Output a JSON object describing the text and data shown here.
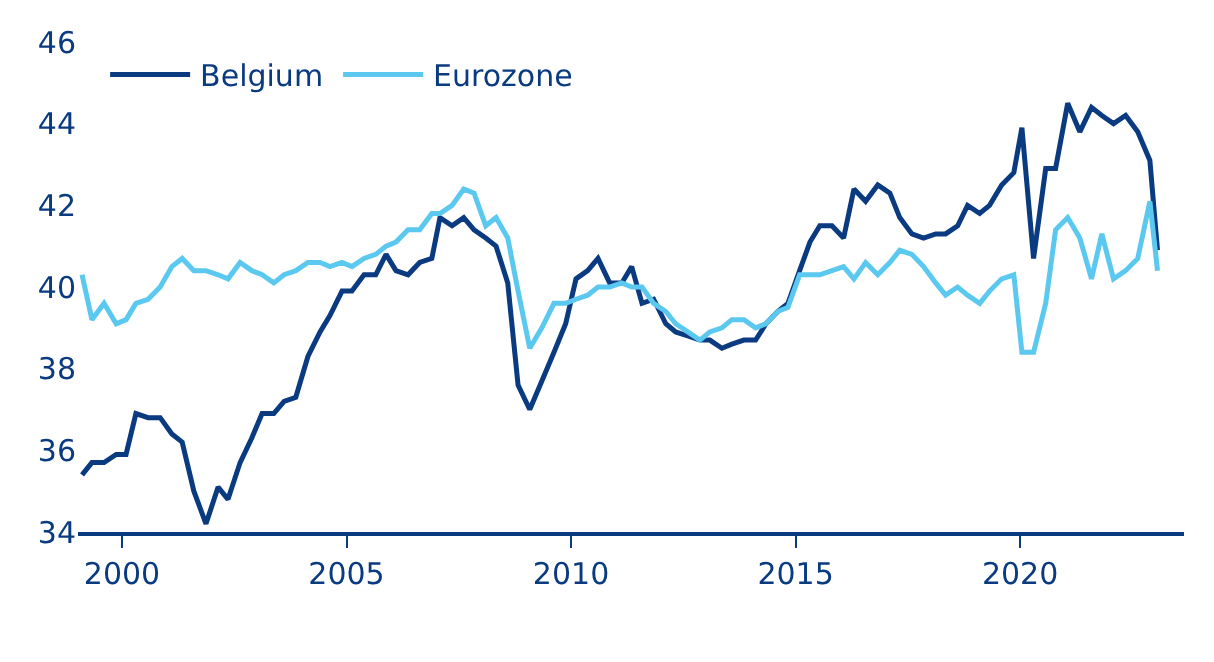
{
  "chart_data": {
    "type": "line",
    "xlim": [
      1999.02,
      2023.65
    ],
    "xticks": [
      2000,
      2005,
      2010,
      2015,
      2020
    ],
    "ylim": [
      34,
      46
    ],
    "yticks": [
      34,
      36,
      38,
      40,
      42,
      44,
      46
    ],
    "legend": "top left",
    "marker": "none",
    "line_style": "solid",
    "series": [
      {
        "name": "Belgium",
        "color": "#0a3a80",
        "x": [
          1999.11,
          1999.33,
          1999.6,
          1999.87,
          2000.09,
          2000.31,
          2000.58,
          2000.85,
          2001.11,
          2001.34,
          2001.6,
          2001.87,
          2002.14,
          2002.36,
          2002.63,
          2002.89,
          2003.12,
          2003.38,
          2003.61,
          2003.87,
          2004.14,
          2004.41,
          2004.63,
          2004.9,
          2005.12,
          2005.39,
          2005.65,
          2005.88,
          2006.1,
          2006.37,
          2006.63,
          2006.9,
          2007.08,
          2007.35,
          2007.61,
          2007.84,
          2008.1,
          2008.33,
          2008.59,
          2008.82,
          2009.08,
          2009.35,
          2009.62,
          2009.88,
          2010.11,
          2010.37,
          2010.6,
          2010.86,
          2011.13,
          2011.35,
          2011.58,
          2011.84,
          2012.11,
          2012.33,
          2012.6,
          2012.87,
          2013.09,
          2013.36,
          2013.58,
          2013.85,
          2014.11,
          2014.34,
          2014.6,
          2014.83,
          2015.09,
          2015.32,
          2015.54,
          2015.81,
          2016.07,
          2016.3,
          2016.56,
          2016.83,
          2017.1,
          2017.32,
          2017.59,
          2017.85,
          2018.12,
          2018.34,
          2018.61,
          2018.83,
          2019.1,
          2019.32,
          2019.59,
          2019.86,
          2020.04,
          2020.3,
          2020.57,
          2020.79,
          2021.06,
          2021.33,
          2021.59,
          2021.82,
          2022.08,
          2022.35,
          2022.62,
          2022.89,
          2023.06
        ],
        "values": [
          35.4,
          35.7,
          35.7,
          35.9,
          35.9,
          36.9,
          36.8,
          36.8,
          36.4,
          36.2,
          35.0,
          34.2,
          35.1,
          34.8,
          35.7,
          36.3,
          36.9,
          36.9,
          37.2,
          37.3,
          38.3,
          38.9,
          39.3,
          39.9,
          39.9,
          40.3,
          40.3,
          40.8,
          40.4,
          40.3,
          40.6,
          40.7,
          41.7,
          41.5,
          41.7,
          41.4,
          41.2,
          41.0,
          40.1,
          37.6,
          37.0,
          37.7,
          38.4,
          39.1,
          40.2,
          40.4,
          40.7,
          40.1,
          40.1,
          40.5,
          39.6,
          39.7,
          39.1,
          38.9,
          38.8,
          38.7,
          38.7,
          38.5,
          38.6,
          38.7,
          38.7,
          39.1,
          39.4,
          39.6,
          40.4,
          41.1,
          41.5,
          41.5,
          41.2,
          42.4,
          42.1,
          42.5,
          42.3,
          41.7,
          41.3,
          41.2,
          41.3,
          41.3,
          41.5,
          42.0,
          41.8,
          42.0,
          42.5,
          42.8,
          43.9,
          40.7,
          42.9,
          42.9,
          44.5,
          43.8,
          44.4,
          44.2,
          44.0,
          44.2,
          43.8,
          43.1,
          40.9
        ]
      },
      {
        "name": "Eurozone",
        "color": "#5bc8f0",
        "x": [
          1999.11,
          1999.33,
          1999.6,
          1999.87,
          2000.09,
          2000.31,
          2000.58,
          2000.85,
          2001.11,
          2001.34,
          2001.6,
          2001.87,
          2002.14,
          2002.36,
          2002.63,
          2002.89,
          2003.12,
          2003.38,
          2003.61,
          2003.87,
          2004.14,
          2004.41,
          2004.63,
          2004.9,
          2005.12,
          2005.39,
          2005.65,
          2005.88,
          2006.1,
          2006.37,
          2006.63,
          2006.9,
          2007.08,
          2007.35,
          2007.61,
          2007.84,
          2008.1,
          2008.33,
          2008.59,
          2008.82,
          2009.08,
          2009.35,
          2009.62,
          2009.88,
          2010.11,
          2010.37,
          2010.6,
          2010.86,
          2011.13,
          2011.35,
          2011.58,
          2011.84,
          2012.11,
          2012.33,
          2012.6,
          2012.87,
          2013.09,
          2013.36,
          2013.58,
          2013.85,
          2014.11,
          2014.34,
          2014.6,
          2014.83,
          2015.09,
          2015.32,
          2015.54,
          2015.81,
          2016.07,
          2016.3,
          2016.56,
          2016.83,
          2017.1,
          2017.32,
          2017.59,
          2017.85,
          2018.12,
          2018.34,
          2018.61,
          2018.83,
          2019.1,
          2019.32,
          2019.59,
          2019.86,
          2020.04,
          2020.3,
          2020.57,
          2020.79,
          2021.06,
          2021.33,
          2021.59,
          2021.82,
          2022.08,
          2022.35,
          2022.62,
          2022.89,
          2023.06
        ],
        "values": [
          40.3,
          39.2,
          39.6,
          39.1,
          39.2,
          39.6,
          39.7,
          40.0,
          40.5,
          40.7,
          40.4,
          40.4,
          40.3,
          40.2,
          40.6,
          40.4,
          40.3,
          40.1,
          40.3,
          40.4,
          40.6,
          40.6,
          40.5,
          40.6,
          40.5,
          40.7,
          40.8,
          41.0,
          41.1,
          41.4,
          41.4,
          41.8,
          41.8,
          42.0,
          42.4,
          42.3,
          41.5,
          41.7,
          41.2,
          39.9,
          38.5,
          39.0,
          39.6,
          39.6,
          39.7,
          39.8,
          40.0,
          40.0,
          40.1,
          40.0,
          40.0,
          39.6,
          39.4,
          39.1,
          38.9,
          38.7,
          38.9,
          39.0,
          39.2,
          39.2,
          39.0,
          39.1,
          39.4,
          39.5,
          40.3,
          40.3,
          40.3,
          40.4,
          40.5,
          40.2,
          40.6,
          40.3,
          40.6,
          40.9,
          40.8,
          40.5,
          40.1,
          39.8,
          40.0,
          39.8,
          39.6,
          39.9,
          40.2,
          40.3,
          38.4,
          38.4,
          39.6,
          41.4,
          41.7,
          41.2,
          40.2,
          41.3,
          40.2,
          40.4,
          40.7,
          42.1,
          40.4
        ]
      }
    ]
  }
}
